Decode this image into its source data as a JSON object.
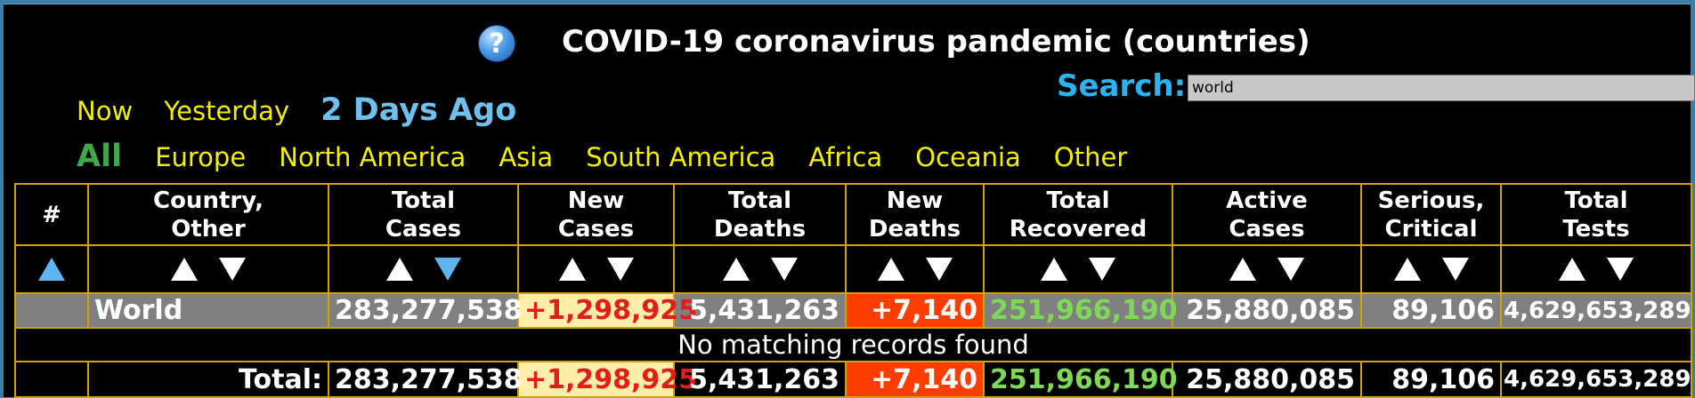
{
  "header": {
    "title": "COVID-19 coronavirus pandemic (countries)",
    "help_icon": "question-circle-icon"
  },
  "search": {
    "label": "Search:",
    "value": "world"
  },
  "day_filters": [
    "Now",
    "Yesterday",
    "2 Days Ago"
  ],
  "day_selected": "2 Days Ago",
  "region_filters": [
    "All",
    "Europe",
    "North America",
    "Asia",
    "South America",
    "Africa",
    "Oceania",
    "Other"
  ],
  "region_selected": "All",
  "table": {
    "columns": [
      "#",
      "Country,\nOther",
      "Total\nCases",
      "New\nCases",
      "Total\nDeaths",
      "New\nDeaths",
      "Total\nRecovered",
      "Active\nCases",
      "Serious,\nCritical",
      "Total\nTests"
    ],
    "sort_column": "Total Cases",
    "sort_direction": "descending",
    "world_row": {
      "rank": "",
      "name": "World",
      "total_cases": "283,277,538",
      "new_cases": "+1,298,925",
      "total_deaths": "5,431,263",
      "new_deaths": "+7,140",
      "total_recovered": "251,966,190",
      "active_cases": "25,880,085",
      "serious_critical": "89,106",
      "total_tests": "4,629,653,289"
    },
    "no_records_message": "No matching records found",
    "total_row": {
      "label": "Total:",
      "total_cases": "283,277,538",
      "new_cases": "+1,298,925",
      "total_deaths": "5,431,263",
      "new_deaths": "+7,140",
      "total_recovered": "251,966,190",
      "active_cases": "25,880,085",
      "serious_critical": "89,106",
      "total_tests": "4,629,653,289"
    }
  },
  "colors": {
    "background": "#000000",
    "grid_border": "#d2a300",
    "link": "#f5f000",
    "active_day": "#6ec0ef",
    "active_region": "#3fa848",
    "search_label": "#2ab3f0",
    "new_cases_bg": "#ffeea8",
    "new_cases_text": "#e21d1d",
    "new_deaths_bg": "#ff3d00",
    "recovered_text": "#7ed957",
    "world_row_bg": "#808080"
  }
}
